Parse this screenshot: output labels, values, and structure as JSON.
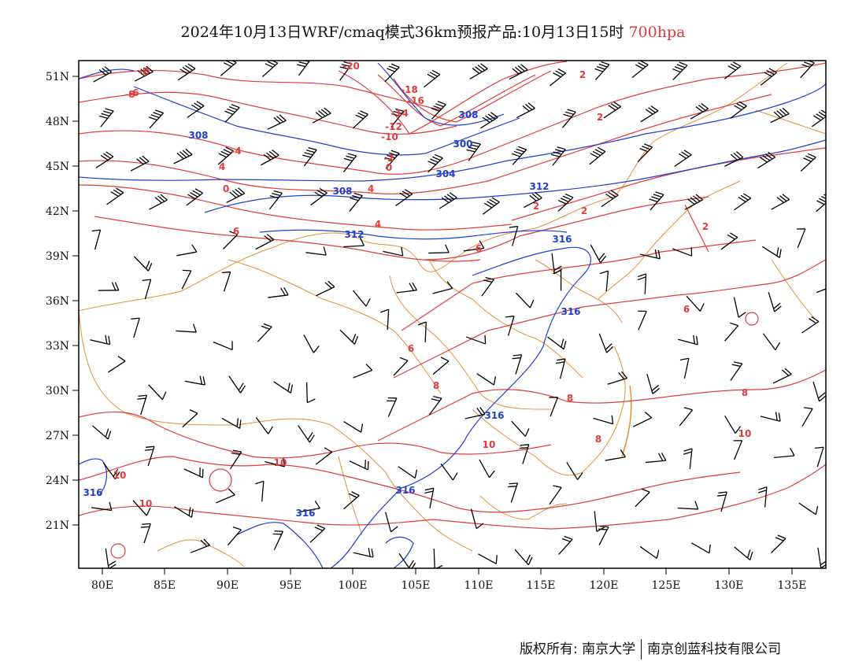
{
  "header": {
    "title": "2024年10月13日WRF/cmaq模式36km预报产品:10月13日15时",
    "level": "700hpa"
  },
  "axes": {
    "lat_ticks": [
      "51N",
      "48N",
      "45N",
      "42N",
      "39N",
      "36N",
      "33N",
      "30N",
      "27N",
      "24N",
      "21N"
    ],
    "lon_ticks": [
      "80E",
      "85E",
      "90E",
      "95E",
      "100E",
      "105E",
      "110E",
      "115E",
      "120E",
      "125E",
      "130E",
      "135E"
    ]
  },
  "contour_labels": {
    "temperature": [
      "-20",
      "-18",
      "-16",
      "-14",
      "-12",
      "-10",
      "-8",
      "-8",
      "-6",
      "-4",
      "-2",
      "0",
      "0",
      "2",
      "2",
      "2",
      "2",
      "2",
      "4",
      "4",
      "4",
      "6",
      "6",
      "6",
      "6",
      "8",
      "8",
      "8",
      "8",
      "10",
      "10",
      "10",
      "10",
      "10"
    ],
    "geopotential": [
      "308",
      "308",
      "304",
      "300",
      "308",
      "312",
      "312",
      "316",
      "316",
      "316",
      "316",
      "316",
      "316"
    ]
  },
  "colors": {
    "temperature_contour": "#e03c3c",
    "height_contour": "#1f3fd0",
    "boundary": "#e0903c",
    "wind_barb": "#000000"
  },
  "footer": {
    "copyright": "版权所有: 南京大学",
    "company": "南京创蓝科技有限公司"
  }
}
